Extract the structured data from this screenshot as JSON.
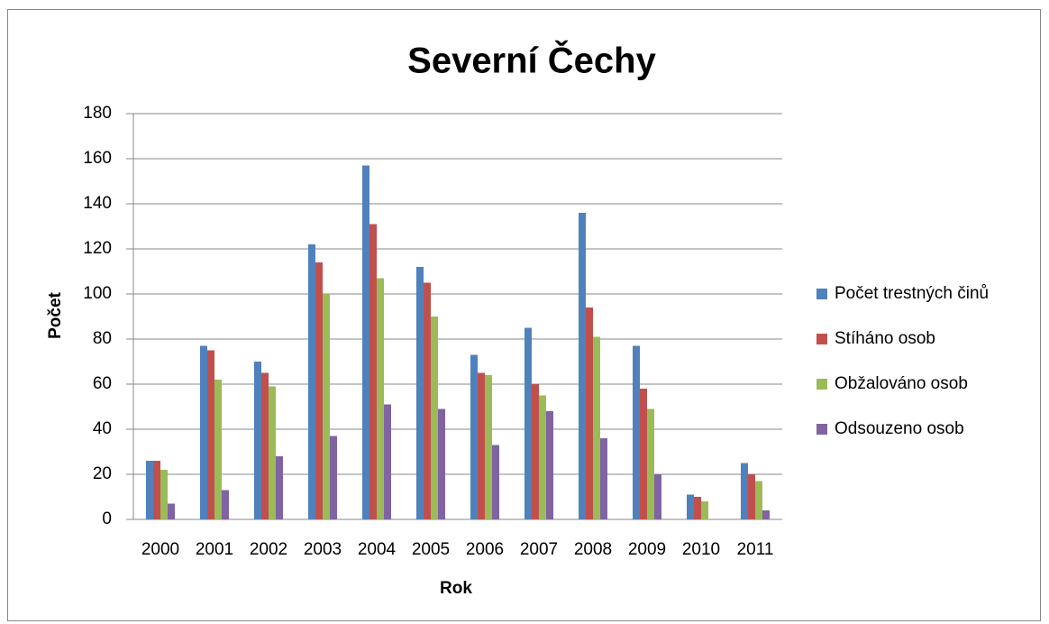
{
  "chart_data": {
    "type": "bar",
    "title": "Severní Čechy",
    "x_label": "Rok",
    "y_label": "Počet",
    "categories": [
      "2000",
      "2001",
      "2002",
      "2003",
      "2004",
      "2005",
      "2006",
      "2007",
      "2008",
      "2009",
      "2010",
      "2011"
    ],
    "series": [
      {
        "name": "Počet trestných činů",
        "color": "#4f81bd",
        "values": [
          26,
          77,
          70,
          122,
          157,
          112,
          73,
          85,
          136,
          77,
          11,
          25
        ]
      },
      {
        "name": "Stíháno osob",
        "color": "#c0504d",
        "values": [
          26,
          75,
          65,
          114,
          131,
          105,
          65,
          60,
          94,
          58,
          10,
          20
        ]
      },
      {
        "name": "Obžalováno osob",
        "color": "#9bbb59",
        "values": [
          22,
          62,
          59,
          100,
          107,
          90,
          64,
          55,
          81,
          49,
          8,
          17
        ]
      },
      {
        "name": "Odsouzeno osob",
        "color": "#8064a2",
        "values": [
          7,
          13,
          28,
          37,
          51,
          49,
          33,
          48,
          36,
          20,
          0,
          4
        ]
      }
    ],
    "ylim": [
      0,
      180
    ],
    "yticks": [
      0,
      20,
      40,
      60,
      80,
      100,
      120,
      140,
      160,
      180
    ],
    "grid": true,
    "legend": "right"
  }
}
